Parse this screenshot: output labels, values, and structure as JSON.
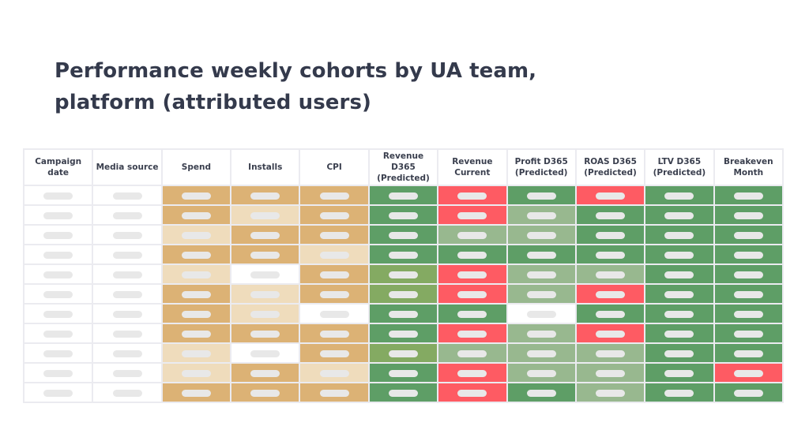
{
  "title": {
    "line1": "Performance weekly cohorts by UA team,",
    "line2": "platform (attributed users)"
  },
  "legend_colors": {
    "w": "#ffffff",
    "D": "#dcb275",
    "L": "#efdcbc",
    "G": "#5e9e66",
    "LG": "#98b88f",
    "O": "#84aa62",
    "R": "#fe5b63",
    "pill": "#e8e8e8"
  },
  "table": {
    "columns": [
      {
        "key": "campaign_date",
        "line1": "Campaign",
        "line2": "date"
      },
      {
        "key": "media_source",
        "line1": "Media source",
        "line2": ""
      },
      {
        "key": "spend",
        "line1": "Spend",
        "line2": ""
      },
      {
        "key": "installs",
        "line1": "Installs",
        "line2": ""
      },
      {
        "key": "cpi",
        "line1": "CPI",
        "line2": ""
      },
      {
        "key": "revenue_d365",
        "line1": "Revenue D365",
        "line2": "(Predicted)"
      },
      {
        "key": "revenue_current",
        "line1": "Revenue",
        "line2": "Current"
      },
      {
        "key": "profit_d365",
        "line1": "Profit D365",
        "line2": "(Predicted)"
      },
      {
        "key": "roas_d365",
        "line1": "ROAS D365",
        "line2": "(Predicted)"
      },
      {
        "key": "ltv_d365",
        "line1": "LTV D365",
        "line2": "(Predicted)"
      },
      {
        "key": "breakeven_month",
        "line1": "Breakeven",
        "line2": "Month"
      }
    ],
    "rows": [
      [
        "w",
        "w",
        "D",
        "D",
        "D",
        "G",
        "R",
        "G",
        "R",
        "G",
        "G"
      ],
      [
        "w",
        "w",
        "D",
        "L",
        "D",
        "G",
        "R",
        "LG",
        "G",
        "G",
        "G"
      ],
      [
        "w",
        "w",
        "L",
        "D",
        "D",
        "G",
        "LG",
        "LG",
        "G",
        "G",
        "G"
      ],
      [
        "w",
        "w",
        "D",
        "D",
        "L",
        "G",
        "G",
        "G",
        "G",
        "G",
        "G"
      ],
      [
        "w",
        "w",
        "L",
        "w",
        "D",
        "O",
        "R",
        "LG",
        "LG",
        "G",
        "G"
      ],
      [
        "w",
        "w",
        "D",
        "L",
        "D",
        "O",
        "R",
        "LG",
        "R",
        "G",
        "G"
      ],
      [
        "w",
        "w",
        "D",
        "L",
        "w",
        "G",
        "G",
        "w",
        "G",
        "G",
        "G"
      ],
      [
        "w",
        "w",
        "D",
        "D",
        "D",
        "G",
        "R",
        "LG",
        "R",
        "G",
        "G"
      ],
      [
        "w",
        "w",
        "L",
        "w",
        "D",
        "O",
        "LG",
        "LG",
        "LG",
        "G",
        "G"
      ],
      [
        "w",
        "w",
        "L",
        "D",
        "L",
        "G",
        "R",
        "LG",
        "LG",
        "G",
        "R"
      ],
      [
        "w",
        "w",
        "D",
        "D",
        "D",
        "G",
        "R",
        "G",
        "LG",
        "G",
        "G"
      ]
    ],
    "cell_values_redacted": true
  }
}
